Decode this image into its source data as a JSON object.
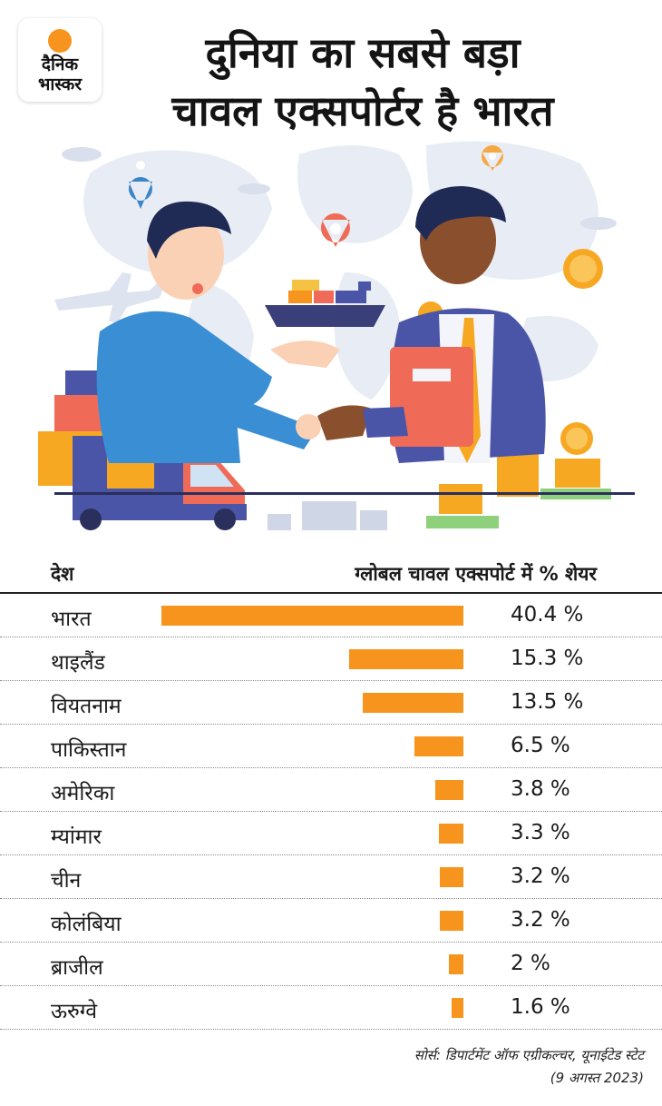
{
  "logo": {
    "line1": "दैनिक",
    "line2": "भास्कर"
  },
  "title": {
    "line1": "दुनिया का सबसे बड़ा",
    "line2": "चावल एक्सपोर्टर है भारत"
  },
  "table": {
    "col_country": "देश",
    "col_share": "ग्लोबल चावल एक्सपोर्ट में % शेयर"
  },
  "chart_data": {
    "type": "bar",
    "orientation": "horizontal",
    "categories": [
      "भारत",
      "थाइलैंड",
      "वियतनाम",
      "पाकिस्तान",
      "अमेरिका",
      "म्यांमार",
      "चीन",
      "कोलंबिया",
      "ब्राजील",
      "ऊरुग्वे"
    ],
    "values": [
      40.4,
      15.3,
      13.5,
      6.5,
      3.8,
      3.3,
      3.2,
      3.2,
      2,
      1.6
    ],
    "value_labels": [
      "40.4 %",
      "15.3 %",
      "13.5 %",
      "6.5 %",
      "3.8 %",
      "3.3 %",
      "3.2 %",
      "3.2 %",
      "2 %",
      "1.6 %"
    ],
    "bar_color": "#f7941d",
    "xlim": [
      0,
      40.4
    ],
    "bar_direction": "right-aligned"
  },
  "source": {
    "line1": "सोर्स: डिपार्टमेंट ऑफ एग्रीकल्चर, यूनाईटेड स्टेट",
    "line2": "(9 अगस्त 2023)"
  },
  "colors": {
    "accent": "#f7941d",
    "shirt": "#3a8fd4",
    "suit": "#4b55a8"
  }
}
